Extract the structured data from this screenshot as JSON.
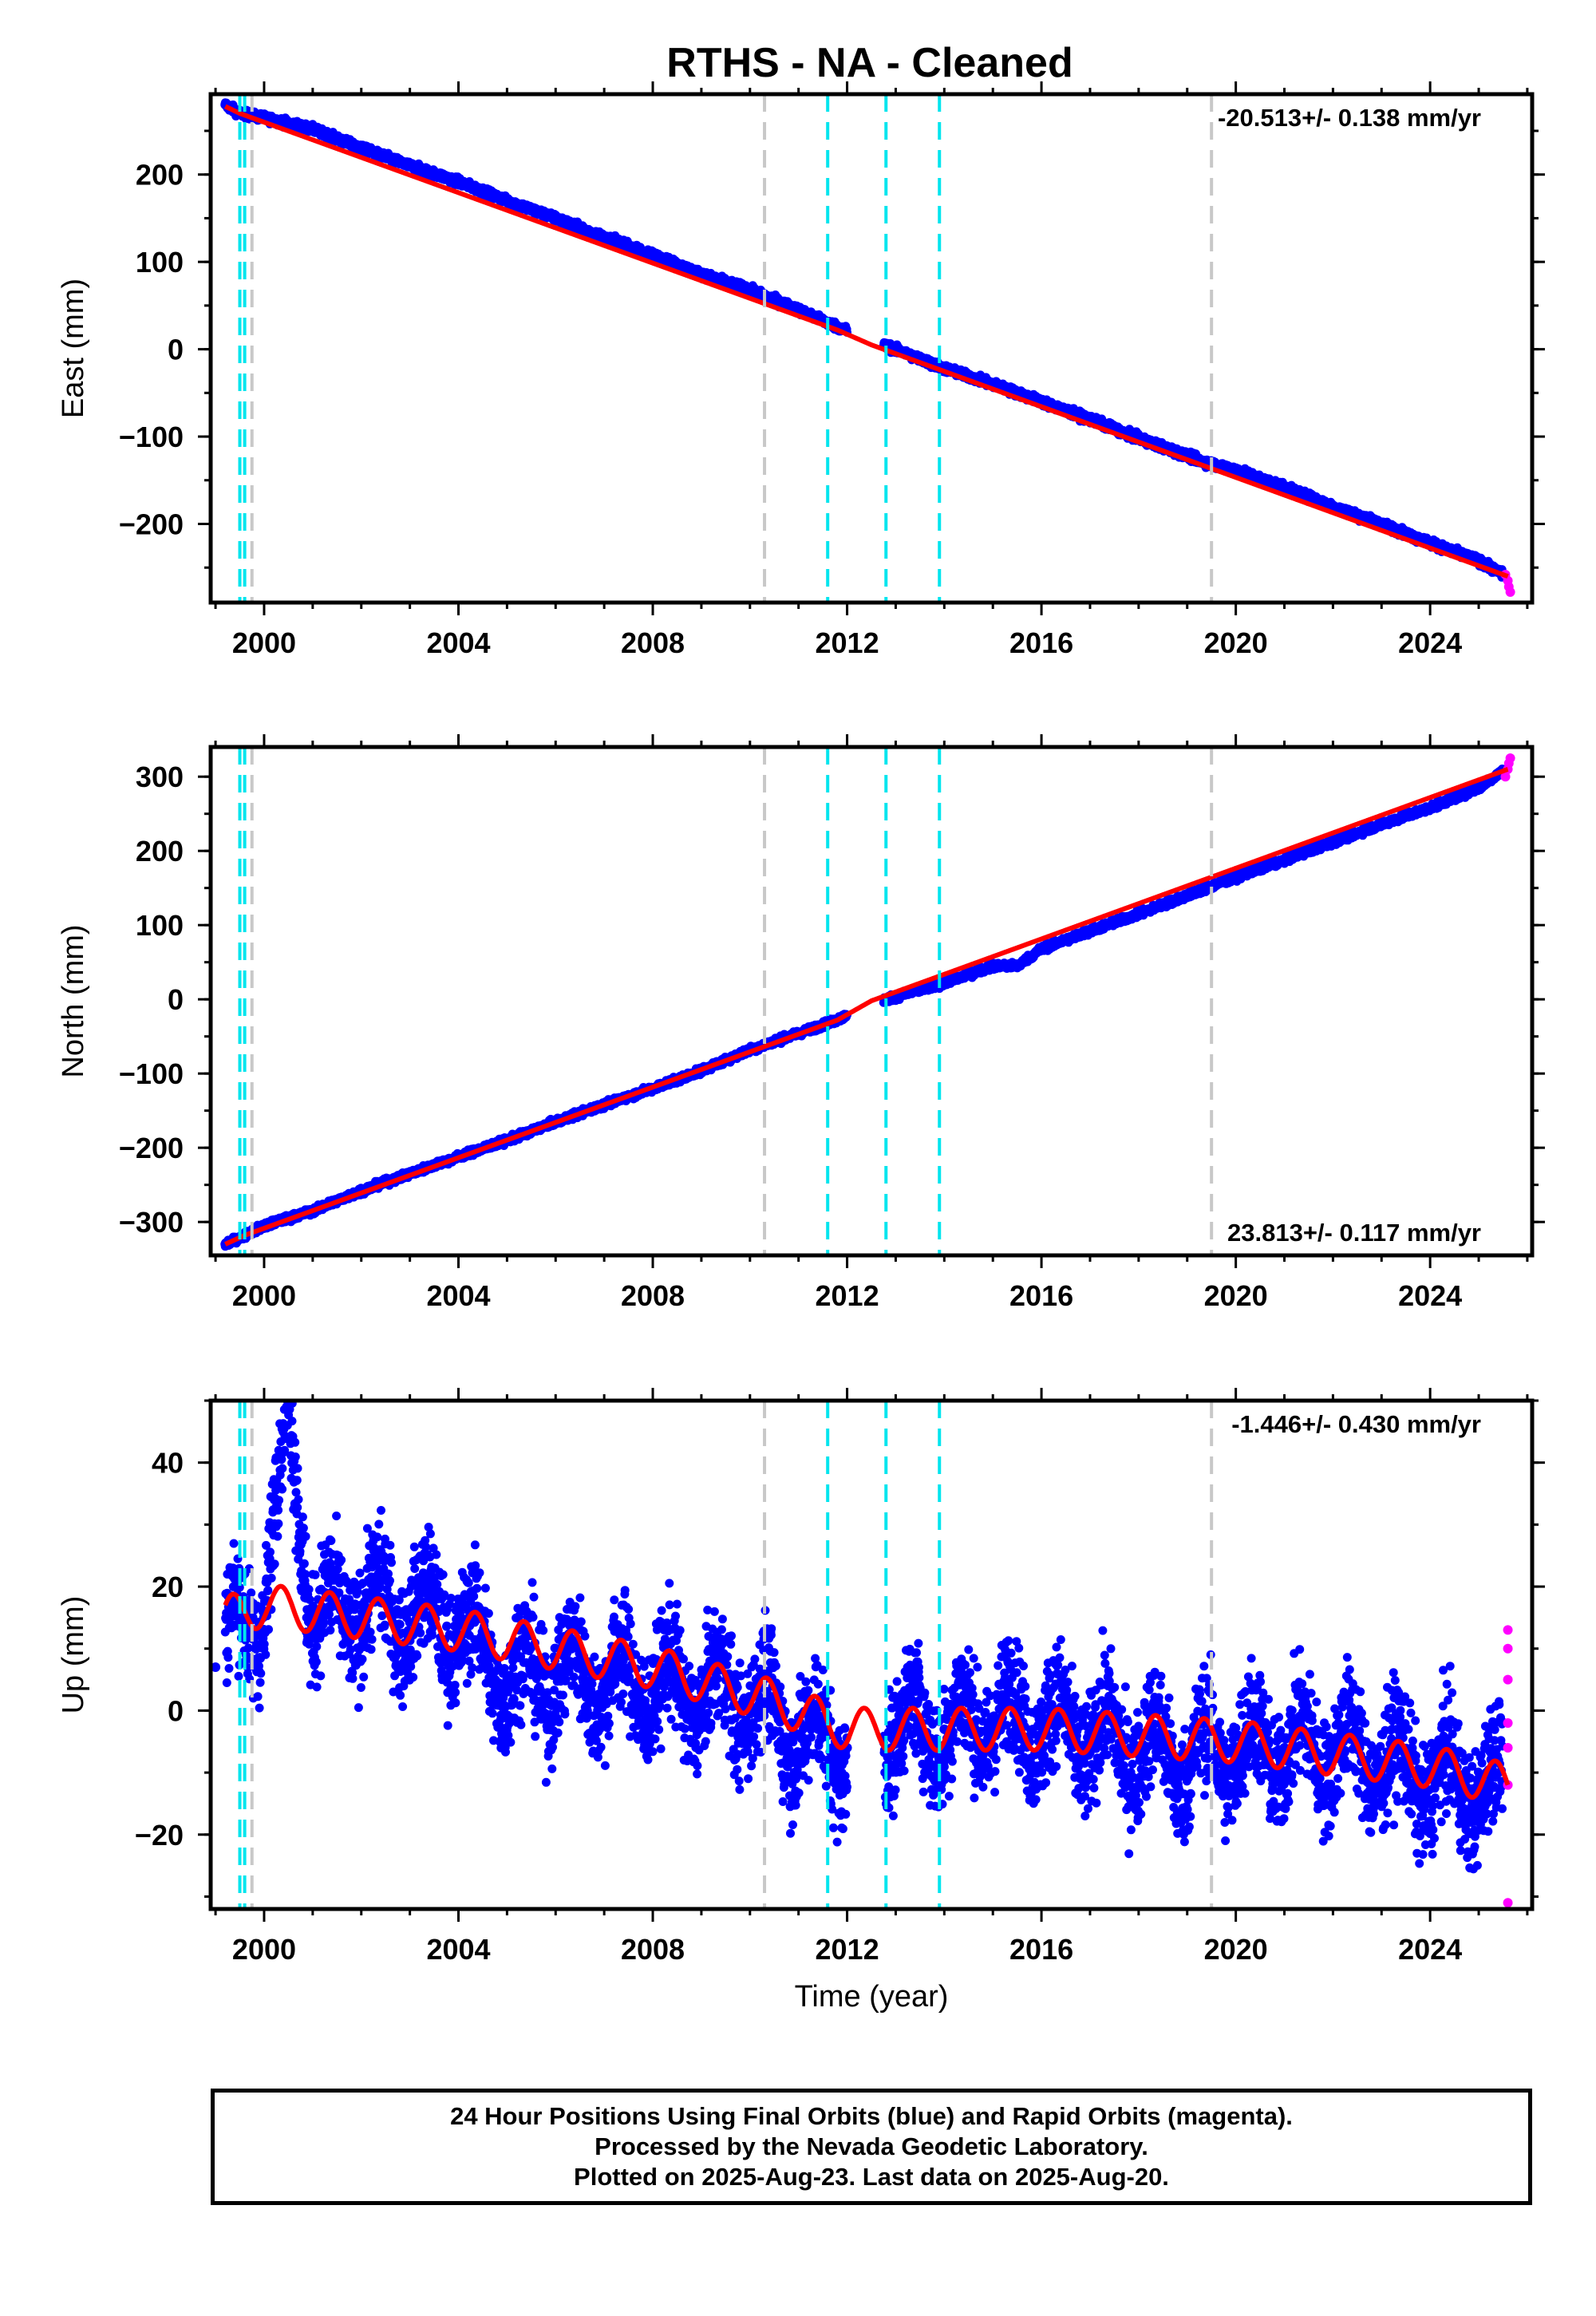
{
  "title": "RTHS  - NA - Cleaned",
  "xlabel": "Time (year)",
  "x_ticks": [
    2000,
    2004,
    2008,
    2012,
    2016,
    2020,
    2024
  ],
  "colors": {
    "final_orbits": "#0000ff",
    "rapid_orbits": "#ff00ff",
    "model": "#ff0000",
    "antenna_change": "#c8c8c8",
    "equipment_change": "#00e5ee",
    "frame": "#000000"
  },
  "footer": {
    "line1": "24 Hour Positions Using Final Orbits (blue) and Rapid Orbits (magenta).",
    "line2": "Processed by the Nevada Geodetic Laboratory.",
    "line3": "Plotted on 2025-Aug-23. Last data on 2025-Aug-20."
  },
  "chart_data": [
    {
      "type": "scatter",
      "panel": "east",
      "ylabel": "East (mm)",
      "rate_label": "-20.513+/- 0.138 mm/yr",
      "xlim": [
        1998.9,
        2026.1
      ],
      "ylim": [
        -290,
        292
      ],
      "y_ticks": [
        -200,
        -100,
        0,
        100,
        200
      ],
      "series": [
        {
          "role": "final",
          "x": [
            1999.2,
            1999.5,
            2000.0,
            2001.0,
            2002.0,
            2003.0,
            2004.0,
            2005.0,
            2006.0,
            2007.0,
            2008.0,
            2009.0,
            2010.0,
            2011.0,
            2011.7,
            2012.8,
            2014.0,
            2015.0,
            2016.0,
            2017.0,
            2018.0,
            2018.8,
            2019.4,
            2020.0,
            2021.0,
            2022.0,
            2023.0,
            2024.0,
            2025.0,
            2025.5
          ],
          "y": [
            280,
            270,
            265,
            252,
            230,
            210,
            192,
            170,
            150,
            128,
            108,
            86,
            68,
            45,
            28,
            4,
            -22,
            -40,
            -60,
            -80,
            -102,
            -118,
            -130,
            -138,
            -158,
            -180,
            -200,
            -222,
            -242,
            -258
          ]
        },
        {
          "role": "rapid",
          "x": [
            2025.55,
            2025.6,
            2025.62,
            2025.65
          ],
          "y": [
            -258,
            -265,
            -272,
            -278
          ]
        },
        {
          "role": "model",
          "x": [
            1999.2,
            1999.5,
            2011.8,
            2012.5,
            2025.6
          ],
          "y": [
            278,
            270,
            22,
            5,
            -260
          ]
        }
      ]
    },
    {
      "type": "scatter",
      "panel": "north",
      "ylabel": "North (mm)",
      "rate_label": "23.813+/- 0.117 mm/yr",
      "xlim": [
        1998.9,
        2026.1
      ],
      "ylim": [
        -345,
        340
      ],
      "y_ticks": [
        -300,
        -200,
        -100,
        0,
        100,
        200,
        300
      ],
      "series": [
        {
          "role": "final",
          "x": [
            1999.2,
            1999.6,
            2000.0,
            2001.0,
            2002.0,
            2003.0,
            2004.0,
            2005.0,
            2006.0,
            2007.0,
            2008.0,
            2009.0,
            2010.0,
            2011.0,
            2011.7,
            2012.8,
            2014.0,
            2015.0,
            2015.5,
            2016.0,
            2017.0,
            2018.0,
            2019.0,
            2020.0,
            2021.0,
            2022.0,
            2023.0,
            2024.0,
            2025.0,
            2025.5
          ],
          "y": [
            -330,
            -318,
            -305,
            -285,
            -258,
            -235,
            -212,
            -190,
            -165,
            -142,
            -120,
            -96,
            -68,
            -46,
            -30,
            0,
            22,
            45,
            45,
            68,
            92,
            115,
            140,
            165,
            188,
            212,
            236,
            258,
            285,
            308
          ]
        },
        {
          "role": "rapid",
          "x": [
            2025.55,
            2025.6,
            2025.62,
            2025.65
          ],
          "y": [
            300,
            310,
            318,
            325
          ]
        },
        {
          "role": "model",
          "x": [
            1999.2,
            1999.6,
            2011.8,
            2012.5,
            2025.6
          ],
          "y": [
            -330,
            -318,
            -28,
            -2,
            310
          ]
        }
      ]
    },
    {
      "type": "scatter",
      "panel": "up",
      "ylabel": "Up (mm)",
      "rate_label": "-1.446+/- 0.430 mm/yr",
      "xlim": [
        1998.9,
        2026.1
      ],
      "ylim": [
        -32,
        50
      ],
      "y_ticks": [
        -20,
        0,
        20,
        40
      ],
      "series": [
        {
          "role": "final",
          "x": [
            1999.0,
            1999.5,
            2000.0,
            2000.5,
            2001.0,
            2002.0,
            2003.0,
            2004.0,
            2005.0,
            2006.0,
            2007.0,
            2008.0,
            2009.0,
            2010.0,
            2011.0,
            2012.0,
            2013.0,
            2014.0,
            2015.0,
            2016.0,
            2017.0,
            2018.0,
            2019.0,
            2020.0,
            2021.0,
            2022.0,
            2023.0,
            2024.0,
            2025.0
          ],
          "y": [
            7,
            15,
            16,
            49,
            14,
            17,
            16,
            14,
            5,
            6,
            5,
            4,
            3,
            2,
            -4,
            -6,
            -2,
            -3,
            -1,
            -2,
            -4,
            -6,
            -8,
            -6,
            -6,
            -6,
            -8,
            -11,
            -12
          ]
        },
        {
          "role": "rapid",
          "x": [
            2025.6,
            2025.6,
            2025.6,
            2025.6,
            2025.6,
            2025.6,
            2025.6
          ],
          "y": [
            13,
            10,
            5,
            -2,
            -6,
            -12,
            -31
          ]
        },
        {
          "role": "model",
          "x": [
            1999.2,
            2000.0,
            2004.0,
            2008.0,
            2010.3,
            2012.0,
            2016.0,
            2020.0,
            2024.0,
            2025.6
          ],
          "y": [
            15,
            17,
            13,
            7,
            2,
            -3,
            -3,
            -5,
            -9,
            -12
          ]
        }
      ]
    }
  ],
  "offsets": {
    "antenna_change_years": [
      1999.75,
      2010.3,
      2019.5
    ],
    "equipment_change_years": [
      1999.5,
      1999.6,
      2011.6,
      2012.8,
      2013.9
    ]
  }
}
